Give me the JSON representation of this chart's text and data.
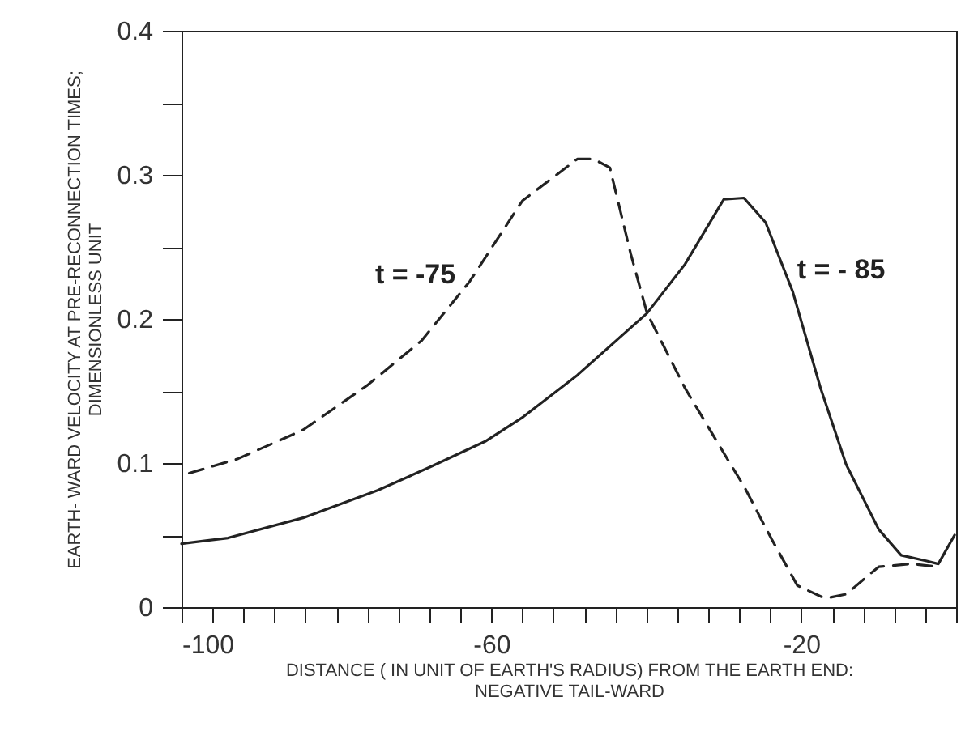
{
  "chart_data": {
    "type": "line",
    "xlabel": "DISTANCE ( IN UNIT OF EARTH'S RADIUS) FROM THE EARTH END:\nNEGATIVE  TAIL-WARD",
    "ylabel": "EARTH- WARD VELOCITY    AT PRE-RECONNECTION TIMES;\nDIMENSIONLESS UNIT",
    "xlim": [
      -100,
      0
    ],
    "ylim": [
      0,
      0.4
    ],
    "xticks": [
      -100,
      {
        "value": -96,
        "label": null
      },
      {
        "value": -92,
        "label": null
      },
      {
        "value": -88,
        "label": null
      },
      {
        "value": -84,
        "label": null
      },
      {
        "value": -80,
        "label": null
      },
      {
        "value": -76,
        "label": null
      },
      {
        "value": -72,
        "label": null
      },
      {
        "value": -68,
        "label": null
      },
      {
        "value": -64,
        "label": null
      },
      -60,
      {
        "value": -56,
        "label": null
      },
      {
        "value": -52,
        "label": null
      },
      {
        "value": -48,
        "label": null
      },
      {
        "value": -44,
        "label": null
      },
      {
        "value": -40,
        "label": null
      },
      {
        "value": -36,
        "label": null
      },
      {
        "value": -32,
        "label": null
      },
      {
        "value": -28,
        "label": null
      },
      {
        "value": -24,
        "label": null
      },
      -20,
      {
        "value": -16,
        "label": null
      },
      {
        "value": -12,
        "label": null
      },
      {
        "value": -8,
        "label": null
      },
      {
        "value": -4,
        "label": null
      },
      {
        "value": 0,
        "label": null
      }
    ],
    "yticks": [
      0,
      {
        "value": 0.05,
        "label": null
      },
      0.1,
      {
        "value": 0.15,
        "label": null
      },
      0.2,
      {
        "value": 0.25,
        "label": null
      },
      0.3,
      {
        "value": 0.35,
        "label": null
      },
      0.4
    ],
    "grid": false,
    "marker": "none",
    "series": [
      {
        "name": "t = -75",
        "color": "#222222",
        "line_style": "dashed",
        "x": [
          -99,
          -92.7,
          -84.3,
          -76,
          -69,
          -62.8,
          -56,
          -48.9,
          -46.8,
          -44.7,
          -42,
          -39.9,
          -35,
          -30,
          -27.4,
          -23.8,
          -20.5,
          -16.9,
          -14.2,
          -10,
          -5.8,
          -2.3
        ],
        "values": [
          0.093,
          0.103,
          0.123,
          0.154,
          0.185,
          0.226,
          0.282,
          0.311,
          0.311,
          0.305,
          0.245,
          0.204,
          0.152,
          0.107,
          0.084,
          0.047,
          0.015,
          0.006,
          0.009,
          0.028,
          0.03,
          0.028
        ]
      },
      {
        "name": "t = - 85",
        "color": "#222222",
        "line_style": "solid",
        "x": [
          -100,
          -94,
          -84.3,
          -74.7,
          -67.6,
          -60.8,
          -55.9,
          -48.9,
          -39.9,
          -35,
          -30,
          -27.4,
          -24.6,
          -21.1,
          -17.5,
          -14.2,
          -10,
          -7.1,
          -3.8,
          -2.3,
          -0.2
        ],
        "values": [
          0.044,
          0.048,
          0.062,
          0.081,
          0.098,
          0.115,
          0.132,
          0.161,
          0.204,
          0.238,
          0.283,
          0.284,
          0.267,
          0.219,
          0.152,
          0.099,
          0.054,
          0.036,
          0.032,
          0.03,
          0.05
        ]
      }
    ]
  }
}
